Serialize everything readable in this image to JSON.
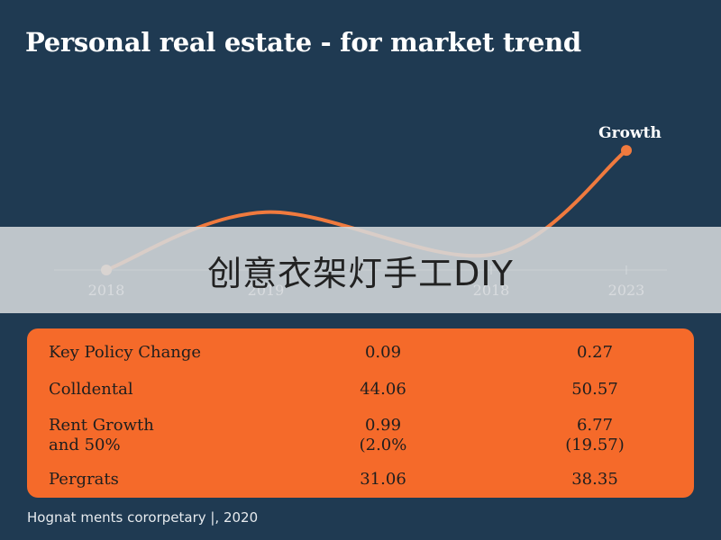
{
  "title": "Personal real estate - for market trend",
  "chart_data": {
    "type": "line",
    "x": [
      "2018",
      "2019",
      "2018",
      "2023"
    ],
    "xlabel": "",
    "ylabel": "",
    "series": [
      {
        "values": [
          0,
          3.0,
          0.8,
          6.2
        ]
      }
    ],
    "ylim": [
      0,
      7
    ],
    "annotations": [
      "Growth"
    ],
    "grid": false,
    "line_color": "#f07a3e"
  },
  "overlay_banner": "创意衣架灯手工DIY",
  "table": {
    "rows": [
      {
        "label": "Key Policy Change",
        "a": "0.09",
        "b": "0.27"
      },
      {
        "label": "Colldental",
        "a": "44.06",
        "b": "50.57"
      },
      {
        "label": "Rent Growth\nand 50%",
        "a": "0.99\n(2.0%",
        "b": "6.77\n(19.57)"
      },
      {
        "label": "Pergrats",
        "a": "31.06",
        "b": "38.35"
      }
    ]
  },
  "footer": "Hognat ments cororpetary |, 2020"
}
